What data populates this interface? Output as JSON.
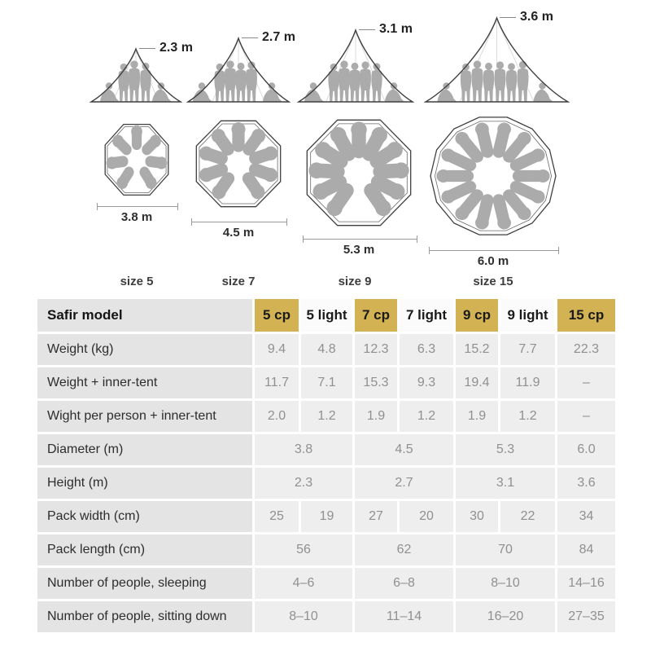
{
  "colors": {
    "highlight_gold": "#d3b254",
    "row_label_bg": "#e4e4e4",
    "data_cell_bg": "#eeeeee",
    "header_plain_bg": "#fbfbfb",
    "value_text": "#909090",
    "label_text": "#2d2d2d",
    "silhouette_gray": "#ababab"
  },
  "diagram": {
    "tents": [
      {
        "height_label": "2.3 m",
        "diameter_label": "3.8 m",
        "size_label": "size 5"
      },
      {
        "height_label": "2.7 m",
        "diameter_label": "4.5 m",
        "size_label": "size 7"
      },
      {
        "height_label": "3.1 m",
        "diameter_label": "5.3 m",
        "size_label": "size 9"
      },
      {
        "height_label": "3.6 m",
        "diameter_label": "6.0 m",
        "size_label": "size 15"
      }
    ]
  },
  "table": {
    "corner_label": "Safir model",
    "columns": [
      {
        "label": "5 cp",
        "highlight": true
      },
      {
        "label": "5 light",
        "highlight": false
      },
      {
        "label": "7 cp",
        "highlight": true
      },
      {
        "label": "7 light",
        "highlight": false
      },
      {
        "label": "9 cp",
        "highlight": true
      },
      {
        "label": "9 light",
        "highlight": false
      },
      {
        "label": "15 cp",
        "highlight": true
      }
    ],
    "rows": [
      {
        "label": "Weight (kg)",
        "cells": [
          {
            "v": "9.4"
          },
          {
            "v": "4.8"
          },
          {
            "v": "12.3"
          },
          {
            "v": "6.3"
          },
          {
            "v": "15.2"
          },
          {
            "v": "7.7"
          },
          {
            "v": "22.3"
          }
        ]
      },
      {
        "label": "Weight + inner-tent",
        "cells": [
          {
            "v": "11.7"
          },
          {
            "v": "7.1"
          },
          {
            "v": "15.3"
          },
          {
            "v": "9.3"
          },
          {
            "v": "19.4"
          },
          {
            "v": "11.9"
          },
          {
            "v": "–"
          }
        ]
      },
      {
        "label": "Wight per person + inner-tent",
        "cells": [
          {
            "v": "2.0"
          },
          {
            "v": "1.2"
          },
          {
            "v": "1.9"
          },
          {
            "v": "1.2"
          },
          {
            "v": "1.9"
          },
          {
            "v": "1.2"
          },
          {
            "v": "–"
          }
        ]
      },
      {
        "label": "Diameter (m)",
        "cells": [
          {
            "v": "3.8",
            "span": 2
          },
          {
            "v": "4.5",
            "span": 2
          },
          {
            "v": "5.3",
            "span": 2
          },
          {
            "v": "6.0"
          }
        ]
      },
      {
        "label": "Height (m)",
        "cells": [
          {
            "v": "2.3",
            "span": 2
          },
          {
            "v": "2.7",
            "span": 2
          },
          {
            "v": "3.1",
            "span": 2
          },
          {
            "v": "3.6"
          }
        ]
      },
      {
        "label": "Pack width (cm)",
        "cells": [
          {
            "v": "25"
          },
          {
            "v": "19"
          },
          {
            "v": "27"
          },
          {
            "v": "20"
          },
          {
            "v": "30"
          },
          {
            "v": "22"
          },
          {
            "v": "34"
          }
        ]
      },
      {
        "label": "Pack length (cm)",
        "cells": [
          {
            "v": "56",
            "span": 2
          },
          {
            "v": "62",
            "span": 2
          },
          {
            "v": "70",
            "span": 2
          },
          {
            "v": "84"
          }
        ]
      },
      {
        "label": "Number of people, sleeping",
        "cells": [
          {
            "v": "4–6",
            "span": 2
          },
          {
            "v": "6–8",
            "span": 2
          },
          {
            "v": "8–10",
            "span": 2
          },
          {
            "v": "14–16"
          }
        ]
      },
      {
        "label": "Number of people, sitting down",
        "cells": [
          {
            "v": "8–10",
            "span": 2
          },
          {
            "v": "11–14",
            "span": 2
          },
          {
            "v": "16–20",
            "span": 2
          },
          {
            "v": "27–35"
          }
        ]
      }
    ]
  }
}
